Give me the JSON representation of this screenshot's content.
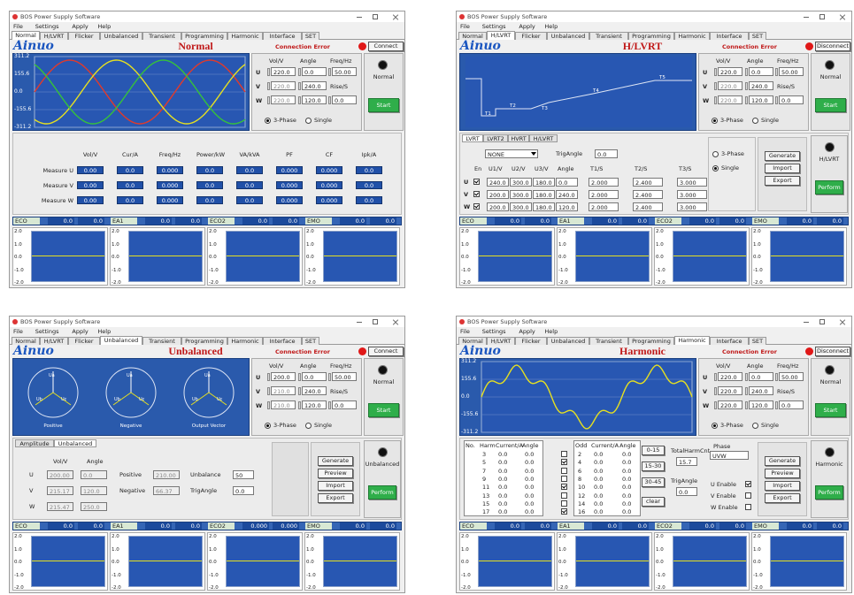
{
  "windows": [
    {
      "title": "BOS Power Supply Software",
      "menu": [
        "File",
        "Settings",
        "Apply",
        "Help"
      ],
      "tabs": [
        "Normal",
        "H/LVRT",
        "Flicker",
        "Unbalanced",
        "Transient",
        "Programming",
        "Harmonic",
        "Interface",
        "SET"
      ],
      "logo": "Ainuo",
      "heading": "Normal",
      "error": "Connection Error",
      "connect": "Connect",
      "graph": {
        "kind": "sine",
        "ticks": [
          "311.2",
          "155.6",
          "0.0",
          "-155.6",
          "-311.2"
        ]
      },
      "controls": {
        "headers": [
          "Vol/V",
          "Angle",
          "Freq/Hz"
        ],
        "rows": [
          [
            "U",
            "220.0",
            "0.0",
            "50.00"
          ],
          [
            "V",
            "220.0",
            "240.0"
          ],
          [
            "W",
            "220.0",
            "120.0"
          ]
        ],
        "rise_label": "Rise/S",
        "rise": "0.0",
        "modes": [
          "3-Phase",
          "Single"
        ]
      },
      "state": "Normal",
      "action": "Start",
      "middle": {
        "kind": "measure",
        "headers": [
          "Vol/V",
          "Cur/A",
          "Freq/Hz",
          "Power/kW",
          "VA/kVA",
          "PF",
          "CF",
          "Ipk/A"
        ],
        "rows": [
          {
            "label": "Measure U",
            "values": [
              "0.00",
              "0.0",
              "0.000",
              "0.0",
              "0.0",
              "0.000",
              "0.000",
              "0.0"
            ]
          },
          {
            "label": "Measure V",
            "values": [
              "0.00",
              "0.0",
              "0.000",
              "0.0",
              "0.0",
              "0.000",
              "0.000",
              "0.0"
            ]
          },
          {
            "label": "Measure W",
            "values": [
              "0.00",
              "0.0",
              "0.000",
              "0.0",
              "0.0",
              "0.000",
              "0.000",
              "0.0"
            ]
          }
        ]
      },
      "meters": [
        {
          "label": "ECO",
          "values": [
            "0.0",
            "0.0"
          ]
        },
        {
          "label": "EA1",
          "values": [
            "0.0",
            "0.0"
          ]
        },
        {
          "label": "ECO2",
          "values": [
            "0.0",
            "0.0"
          ]
        },
        {
          "label": "EMO",
          "values": [
            "0.0",
            "0.0"
          ]
        }
      ],
      "mini_ticks": [
        "2.0",
        "1.0",
        "0.0",
        "-1.0",
        "-2.0"
      ]
    },
    {
      "title": "BOS Power Supply Software",
      "menu": [
        "File",
        "Settings",
        "Apply",
        "Help"
      ],
      "tabs": [
        "Normal",
        "H/LVRT",
        "Flicker",
        "Unbalanced",
        "Transient",
        "Programming",
        "Harmonic",
        "Interface",
        "SET"
      ],
      "logo": "Ainuo",
      "heading": "H/LVRT",
      "error": "Connection Error",
      "connect": "Disconnect",
      "graph": {
        "kind": "lvrt",
        "labels": [
          "T1",
          "T2",
          "T3",
          "T4",
          "T5"
        ]
      },
      "controls": {
        "headers": [
          "Vol/V",
          "Angle",
          "Freq/Hz"
        ],
        "rows": [
          [
            "U",
            "220.0",
            "0.0",
            "50.00"
          ],
          [
            "V",
            "220.0",
            "240.0"
          ],
          [
            "W",
            "220.0",
            "120.0"
          ]
        ],
        "rise_label": "Rise/S",
        "rise": "0.0",
        "modes": [
          "3-Phase",
          "Single"
        ]
      },
      "state": "Normal",
      "action": "Start",
      "middle": {
        "kind": "lvrt",
        "subtabs": [
          "LVRT",
          "LVRT2",
          "HVRT",
          "H/LVRT"
        ],
        "select": "NONE",
        "trig_label": "TrigAngle",
        "trig": "0.0",
        "headers": [
          "En",
          "U1/V",
          "U2/V",
          "U3/V",
          "Angle",
          "T1/S",
          "T2/S",
          "T3/S"
        ],
        "rows": [
          [
            "U",
            "240.0",
            "300.0",
            "180.0",
            "0.0",
            "2.000",
            "2.400",
            "3.000"
          ],
          [
            "V",
            "200.0",
            "300.0",
            "180.0",
            "240.0",
            "2.000",
            "2.400",
            "3.000"
          ],
          [
            "W",
            "200.0",
            "300.0",
            "180.0",
            "120.0",
            "2.000",
            "2.400",
            "3.000"
          ]
        ],
        "modes": [
          "3-Phase",
          "Single"
        ],
        "buttons": [
          "Generate",
          "Import",
          "Export"
        ],
        "state": "H/LVRT",
        "action": "Perform"
      },
      "meters": [
        {
          "label": "ECO",
          "values": [
            "0.0",
            "0.0"
          ]
        },
        {
          "label": "EA1",
          "values": [
            "0.0",
            "0.0"
          ]
        },
        {
          "label": "ECO2",
          "values": [
            "0.0",
            "0.0"
          ]
        },
        {
          "label": "EMO",
          "values": [
            "0.0",
            "0.0"
          ]
        }
      ],
      "mini_ticks": [
        "2.0",
        "1.0",
        "0.0",
        "-1.0",
        "-2.0"
      ]
    },
    {
      "title": "BOS Power Supply Software",
      "menu": [
        "File",
        "Settings",
        "Apply",
        "Help"
      ],
      "tabs": [
        "Normal",
        "H/LVRT",
        "Flicker",
        "Unbalanced",
        "Transient",
        "Programming",
        "Harmonic",
        "Interface",
        "SET"
      ],
      "logo": "Ainuo",
      "heading": "Unbalanced",
      "error": "Connection Error",
      "connect": "Connect",
      "graph": {
        "kind": "vectors",
        "phases": [
          "Ua",
          "Ub",
          "Uc"
        ],
        "labels": [
          "Positive",
          "Negative",
          "Output Vector"
        ]
      },
      "controls": {
        "headers": [
          "Vol/V",
          "Angle",
          "Freq/Hz"
        ],
        "rows": [
          [
            "U",
            "200.0",
            "0.0",
            "50.00"
          ],
          [
            "V",
            "210.0",
            "240.0"
          ],
          [
            "W",
            "210.0",
            "120.0"
          ]
        ],
        "rise_label": "Rise/S",
        "rise": "0.0",
        "modes": [
          "3-Phase",
          "Single"
        ]
      },
      "state": "Normal",
      "action": "Start",
      "middle": {
        "kind": "unbalanced",
        "subtabs": [
          "Amplitude",
          "Unbalanced"
        ],
        "headers": [
          "Vol/V",
          "Angle"
        ],
        "rows": [
          [
            "U",
            "200.00",
            "0.0"
          ],
          [
            "V",
            "215.17",
            "120.0"
          ],
          [
            "W",
            "215.47",
            "250.0"
          ]
        ],
        "fields": [
          [
            "Positive",
            "210.00"
          ],
          [
            "Negative",
            "66.37"
          ]
        ],
        "inputs": [
          [
            "Unbalance",
            "50"
          ],
          [
            "TrigAngle",
            "0.0"
          ]
        ],
        "buttons": [
          "Generate",
          "Preview",
          "Import",
          "Export"
        ],
        "state": "Unbalanced",
        "action": "Perform"
      },
      "meters": [
        {
          "label": "ECO",
          "values": [
            "0.0",
            "0.0"
          ]
        },
        {
          "label": "EA1",
          "values": [
            "0.0",
            "0.0"
          ]
        },
        {
          "label": "ECO2",
          "values": [
            "0.000",
            "0.000"
          ]
        },
        {
          "label": "EMO",
          "values": [
            "0.0",
            "0.0"
          ]
        }
      ],
      "mini_ticks": [
        "2.0",
        "1.0",
        "0.0",
        "-1.0",
        "-2.0"
      ]
    },
    {
      "title": "BOS Power Supply Software",
      "menu": [
        "File",
        "Settings",
        "Apply",
        "Help"
      ],
      "tabs": [
        "Normal",
        "H/LVRT",
        "Flicker",
        "Unbalanced",
        "Transient",
        "Programming",
        "Harmonic",
        "Interface",
        "SET"
      ],
      "logo": "Ainuo",
      "heading": "Harmonic",
      "error": "Connection Error",
      "connect": "Disconnect",
      "graph": {
        "kind": "harmonic",
        "ticks": [
          "311.2",
          "155.6",
          "0.0",
          "-155.6",
          "-311.2"
        ]
      },
      "controls": {
        "headers": [
          "Vol/V",
          "Angle",
          "Freq/Hz"
        ],
        "rows": [
          [
            "U",
            "220.0",
            "0.0",
            "50.00"
          ],
          [
            "V",
            "220.0",
            "240.0"
          ],
          [
            "W",
            "220.0",
            "120.0"
          ]
        ],
        "rise_label": "Rise/S",
        "rise": "0.0",
        "modes": [
          "3-Phase",
          "Single"
        ]
      },
      "state": "Normal",
      "action": "Start",
      "middle": {
        "kind": "harmonic",
        "headers": [
          "No.",
          "Harm",
          "Current/A",
          "Angle"
        ],
        "rows": [
          [
            "3",
            "0.0",
            "0.0"
          ],
          [
            "5",
            "0.0",
            "0.0"
          ],
          [
            "7",
            "0.0",
            "0.0"
          ],
          [
            "9",
            "0.0",
            "0.0"
          ],
          [
            "11",
            "0.0",
            "0.0"
          ],
          [
            "13",
            "0.0",
            "0.0"
          ],
          [
            "15",
            "0.0",
            "0.0"
          ],
          [
            "17",
            "0.0",
            "0.0"
          ]
        ],
        "headers2": [
          "Odd",
          "Current/A",
          "Angle"
        ],
        "rows2": [
          [
            "2",
            "0.0",
            "0.0"
          ],
          [
            "4",
            "0.0",
            "0.0"
          ],
          [
            "6",
            "0.0",
            "0.0"
          ],
          [
            "8",
            "0.0",
            "0.0"
          ],
          [
            "10",
            "0.0",
            "0.0"
          ],
          [
            "12",
            "0.0",
            "0.0"
          ],
          [
            "14",
            "0.0",
            "0.0"
          ],
          [
            "16",
            "0.0",
            "0.0"
          ]
        ],
        "ranges": [
          "0-15",
          "15-30",
          "30-45",
          "clear"
        ],
        "total_label": "TotalHarmCnt",
        "total": "15.7",
        "trig_label": "TrigAngle",
        "trig": "0.0",
        "phase_label": "Phase",
        "phase": "UVW",
        "enables": [
          "U Enable",
          "V Enable",
          "W Enable"
        ],
        "buttons": [
          "Generate",
          "Preview",
          "Import",
          "Export"
        ],
        "state": "Harmonic",
        "action": "Perform"
      },
      "meters": [
        {
          "label": "ECO",
          "values": [
            "0.0",
            "0.0"
          ]
        },
        {
          "label": "EA1",
          "values": [
            "0.0",
            "0.0"
          ]
        },
        {
          "label": "ECO2",
          "values": [
            "0.0",
            "0.0"
          ]
        },
        {
          "label": "EMO",
          "values": [
            "0.0",
            "0.0"
          ]
        }
      ],
      "mini_ticks": [
        "2.0",
        "1.0",
        "0.0",
        "-1.0",
        "-2.0"
      ]
    }
  ]
}
